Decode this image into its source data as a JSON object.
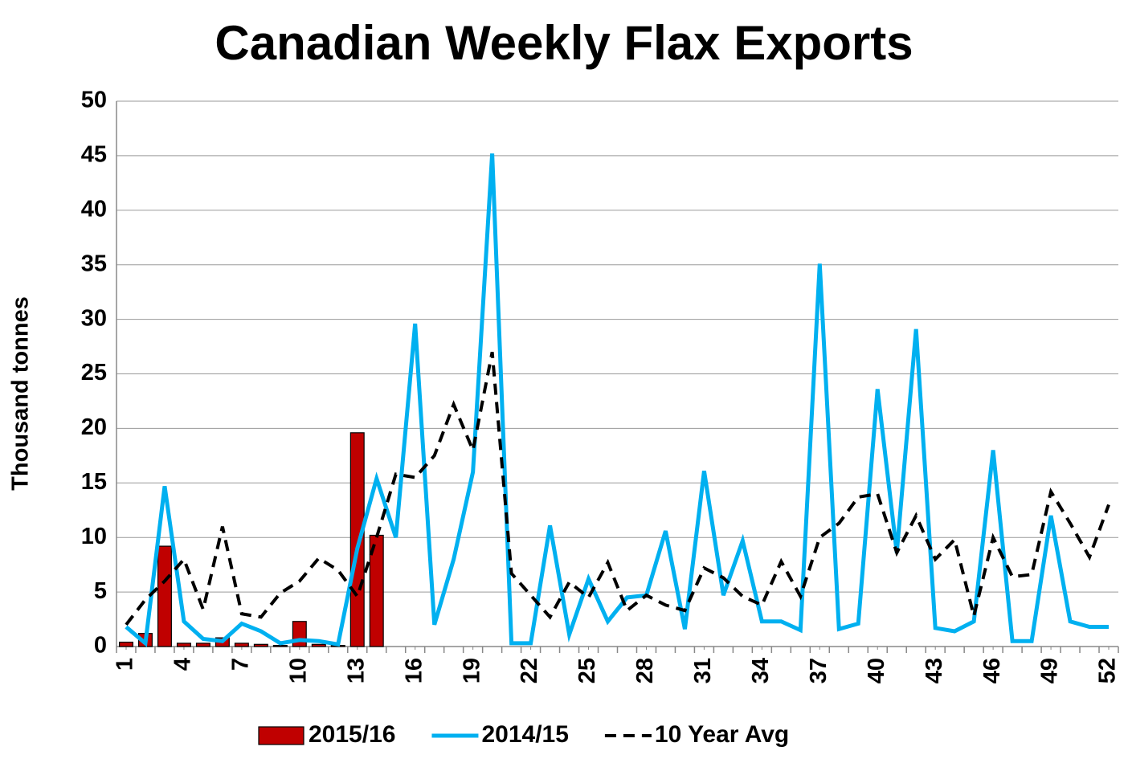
{
  "chart_data": {
    "type": "combo",
    "title": "Canadian Weekly Flax Exports",
    "y_label": "Thousand tonnes",
    "x": [
      1,
      2,
      3,
      4,
      5,
      6,
      7,
      8,
      9,
      10,
      11,
      12,
      13,
      14,
      15,
      16,
      17,
      18,
      19,
      20,
      21,
      22,
      23,
      24,
      25,
      26,
      27,
      28,
      29,
      30,
      31,
      32,
      33,
      34,
      35,
      36,
      37,
      38,
      39,
      40,
      41,
      42,
      43,
      44,
      45,
      46,
      47,
      48,
      49,
      50,
      51,
      52
    ],
    "xlim": [
      0.5,
      52.5
    ],
    "xticks": [
      1,
      4,
      7,
      10,
      13,
      16,
      19,
      22,
      25,
      28,
      31,
      34,
      37,
      40,
      43,
      46,
      49,
      52
    ],
    "ylim": [
      0,
      50
    ],
    "yticks": [
      0,
      5,
      10,
      15,
      20,
      25,
      30,
      35,
      40,
      45,
      50
    ],
    "grid": true,
    "legend": "bottom",
    "series": [
      {
        "name": "2015/16",
        "type": "bar",
        "color": "#c00000",
        "values": [
          0.4,
          1.2,
          9.2,
          0.3,
          0.3,
          0.8,
          0.3,
          0.2,
          0.1,
          2.3,
          0.2,
          0.1,
          19.6,
          10.2,
          null,
          null,
          null,
          null,
          null,
          null,
          null,
          null,
          null,
          null,
          null,
          null,
          null,
          null,
          null,
          null,
          null,
          null,
          null,
          null,
          null,
          null,
          null,
          null,
          null,
          null,
          null,
          null,
          null,
          null,
          null,
          null,
          null,
          null,
          null,
          null,
          null,
          null
        ]
      },
      {
        "name": "2014/15",
        "type": "line",
        "color": "#00b0f0",
        "values": [
          1.8,
          0.3,
          14.7,
          2.3,
          0.7,
          0.5,
          2.1,
          1.4,
          0.3,
          0.6,
          0.5,
          0.2,
          9.0,
          15.4,
          10.0,
          29.6,
          2.0,
          8.0,
          16.0,
          45.2,
          0.3,
          0.3,
          11.1,
          1.1,
          6.2,
          2.3,
          4.5,
          4.7,
          10.6,
          1.6,
          16.1,
          4.7,
          9.7,
          2.3,
          2.3,
          1.5,
          35.1,
          1.6,
          2.1,
          23.6,
          8.6,
          29.1,
          1.7,
          1.4,
          2.3,
          18.0,
          0.5,
          0.5,
          12.0,
          2.3,
          1.8,
          1.8
        ]
      },
      {
        "name": "10 Year Avg",
        "type": "line",
        "dashed": true,
        "color": "#000000",
        "values": [
          2.0,
          4.3,
          6.0,
          8.0,
          3.4,
          11.0,
          3.0,
          2.7,
          4.9,
          6.0,
          8.1,
          7.0,
          4.6,
          10.0,
          15.8,
          15.5,
          17.5,
          22.2,
          18.0,
          27.0,
          6.7,
          4.7,
          2.7,
          5.9,
          4.5,
          7.7,
          3.3,
          4.7,
          3.8,
          3.3,
          7.2,
          6.3,
          4.6,
          3.8,
          7.8,
          4.6,
          10.0,
          11.3,
          13.7,
          14.0,
          8.6,
          12.0,
          8.0,
          9.8,
          2.8,
          10.0,
          6.4,
          6.6,
          14.2,
          11.3,
          8.2,
          13.0
        ]
      }
    ]
  }
}
